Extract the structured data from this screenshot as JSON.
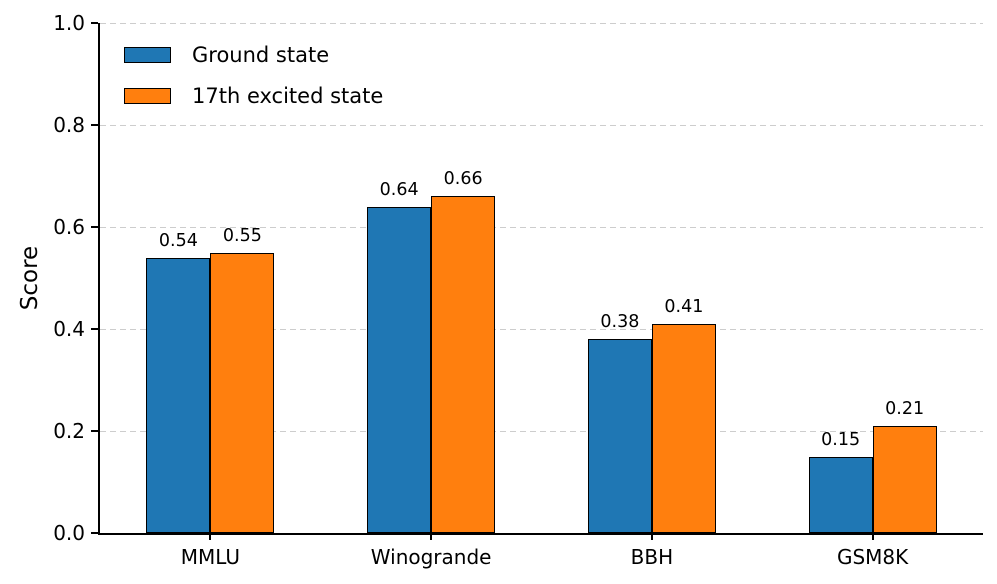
{
  "chart_data": {
    "type": "bar",
    "categories": [
      "MMLU",
      "Winogrande",
      "BBH",
      "GSM8K"
    ],
    "series": [
      {
        "name": "Ground state",
        "color": "#1f77b4",
        "values": [
          0.54,
          0.64,
          0.38,
          0.15
        ]
      },
      {
        "name": "17th excited state",
        "color": "#ff7f0e",
        "values": [
          0.55,
          0.66,
          0.41,
          0.21
        ]
      }
    ],
    "value_labels": [
      [
        "0.54",
        "0.64",
        "0.38",
        "0.15"
      ],
      [
        "0.55",
        "0.66",
        "0.41",
        "0.21"
      ]
    ],
    "title": "",
    "xlabel": "",
    "ylabel": "Score",
    "ylim": [
      0.0,
      1.0
    ],
    "yticks": [
      0.0,
      0.2,
      0.4,
      0.6,
      0.8,
      1.0
    ],
    "ytick_labels": [
      "0.0",
      "0.2",
      "0.4",
      "0.6",
      "0.8",
      "1.0"
    ],
    "grid": "horizontal-dashed",
    "gridline_color": "#cdcdcd",
    "bar_edge_color": "#000000",
    "legend_position": "upper left"
  }
}
